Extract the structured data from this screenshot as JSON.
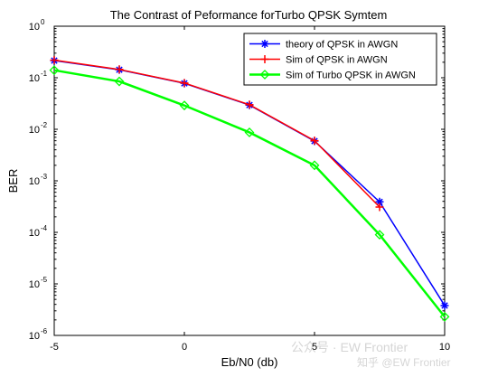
{
  "chart_data": {
    "type": "line",
    "title": "The Contrast of Peformance forTurbo QPSK Symtem",
    "xlabel": "Eb/N0  (db)",
    "ylabel": "BER",
    "xlim": [
      -5,
      10
    ],
    "ylim": [
      1e-06,
      1
    ],
    "yscale": "log",
    "x_ticks": [
      "-5",
      "0",
      "5",
      "10"
    ],
    "x_tick_values": [
      -5,
      0,
      5,
      10
    ],
    "y_tick_exponents": [
      0,
      -1,
      -2,
      -3,
      -4,
      -5,
      -6
    ],
    "y_tick_base": "10",
    "grid": false,
    "legend_position": "top-right",
    "series": [
      {
        "name": "theory of QPSK in AWGN",
        "color": "#0000ff",
        "marker": "asterisk",
        "x": [
          -5,
          -2.5,
          0,
          2.5,
          5,
          7.5,
          10
        ],
        "y": [
          0.215,
          0.143,
          0.078,
          0.0295,
          0.0059,
          0.00039,
          3.8e-06
        ]
      },
      {
        "name": "Sim of QPSK in AWGN",
        "color": "#ff0000",
        "marker": "plus",
        "x": [
          -5,
          -2.5,
          0,
          2.5,
          5,
          7.5
        ],
        "y": [
          0.22,
          0.145,
          0.079,
          0.03,
          0.006,
          0.00031
        ]
      },
      {
        "name": "Sim of Turbo QPSK in AWGN",
        "color": "#00ff00",
        "marker": "diamond",
        "x": [
          -5,
          -2.5,
          0,
          2.5,
          5,
          7.5,
          10
        ],
        "y": [
          0.14,
          0.085,
          0.029,
          0.0087,
          0.002,
          9e-05,
          2.3e-06
        ]
      }
    ]
  },
  "watermark": {
    "text": "公众号 · EW Frontier",
    "text2": "知乎 @EW Frontier"
  }
}
